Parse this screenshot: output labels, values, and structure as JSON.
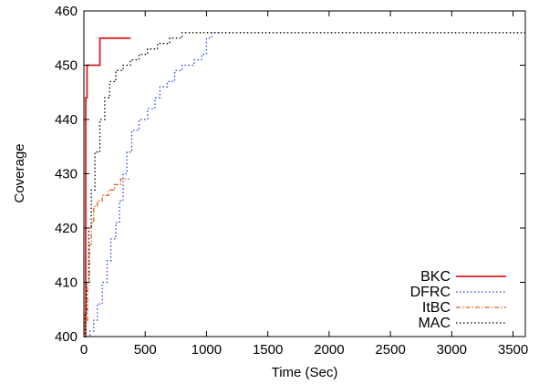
{
  "chart_data": {
    "type": "line",
    "title": "",
    "xlabel": "Time (Sec)",
    "ylabel": "Coverage",
    "xlim": [
      0,
      3600
    ],
    "ylim": [
      400,
      460
    ],
    "xticks": [
      0,
      500,
      1000,
      1500,
      2000,
      2500,
      3000,
      3500
    ],
    "yticks": [
      400,
      410,
      420,
      430,
      440,
      450,
      460
    ],
    "grid": false,
    "legend_position": "bottom-right",
    "series": [
      {
        "name": "BKC",
        "color": "#e02020",
        "style": "solid",
        "step": true,
        "points": [
          [
            0,
            400
          ],
          [
            15,
            444
          ],
          [
            25,
            450
          ],
          [
            120,
            450
          ],
          [
            130,
            455
          ],
          [
            380,
            455
          ]
        ]
      },
      {
        "name": "DFRC",
        "color": "#2040e0",
        "style": "dotted",
        "step": true,
        "points": [
          [
            0,
            400
          ],
          [
            20,
            400
          ],
          [
            50,
            401
          ],
          [
            80,
            403
          ],
          [
            110,
            406
          ],
          [
            150,
            410
          ],
          [
            190,
            414
          ],
          [
            220,
            418
          ],
          [
            260,
            421
          ],
          [
            290,
            425
          ],
          [
            320,
            430
          ],
          [
            350,
            434
          ],
          [
            390,
            438
          ],
          [
            450,
            440
          ],
          [
            520,
            442
          ],
          [
            580,
            444
          ],
          [
            620,
            446
          ],
          [
            680,
            447
          ],
          [
            740,
            449
          ],
          [
            800,
            450
          ],
          [
            900,
            451
          ],
          [
            960,
            452
          ],
          [
            1000,
            455
          ],
          [
            1040,
            456
          ],
          [
            1110,
            456
          ]
        ]
      },
      {
        "name": "ItBC",
        "color": "#e06020",
        "style": "dashdot",
        "step": true,
        "points": [
          [
            0,
            400
          ],
          [
            15,
            403
          ],
          [
            30,
            410
          ],
          [
            45,
            417
          ],
          [
            60,
            421
          ],
          [
            80,
            424
          ],
          [
            110,
            425
          ],
          [
            150,
            426
          ],
          [
            200,
            427
          ],
          [
            250,
            428
          ],
          [
            300,
            429
          ],
          [
            370,
            429
          ]
        ]
      },
      {
        "name": "MAC",
        "color": "#000000",
        "style": "dotted",
        "step": true,
        "points": [
          [
            0,
            400
          ],
          [
            10,
            404
          ],
          [
            20,
            410
          ],
          [
            40,
            420
          ],
          [
            60,
            427
          ],
          [
            90,
            434
          ],
          [
            130,
            440
          ],
          [
            170,
            444
          ],
          [
            210,
            447
          ],
          [
            260,
            449
          ],
          [
            320,
            450
          ],
          [
            380,
            451
          ],
          [
            450,
            452
          ],
          [
            520,
            453
          ],
          [
            600,
            454
          ],
          [
            700,
            455
          ],
          [
            800,
            456
          ],
          [
            3600,
            456
          ]
        ]
      }
    ]
  }
}
